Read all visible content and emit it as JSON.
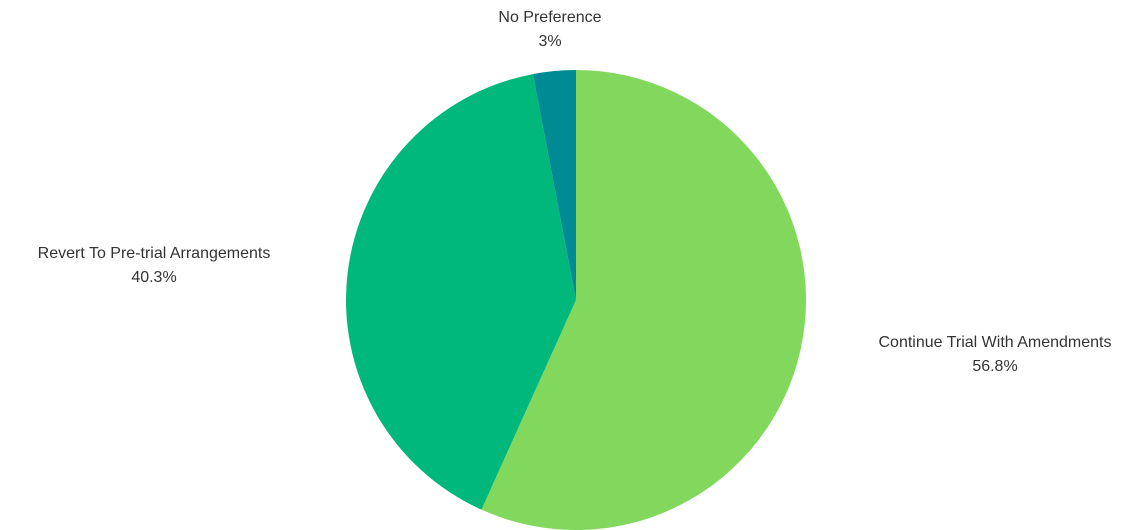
{
  "chart_data": {
    "type": "pie",
    "title": "",
    "legend": "none",
    "series": [
      {
        "name": "Continue Trial With Amendments",
        "value": 56.8,
        "label": "56.8%",
        "color": "#82d85d"
      },
      {
        "name": "Revert To Pre-trial Arrangements",
        "value": 40.3,
        "label": "40.3%",
        "color": "#00b77c"
      },
      {
        "name": "No Preference",
        "value": 3,
        "label": "3%",
        "color": "#008a93"
      }
    ]
  }
}
